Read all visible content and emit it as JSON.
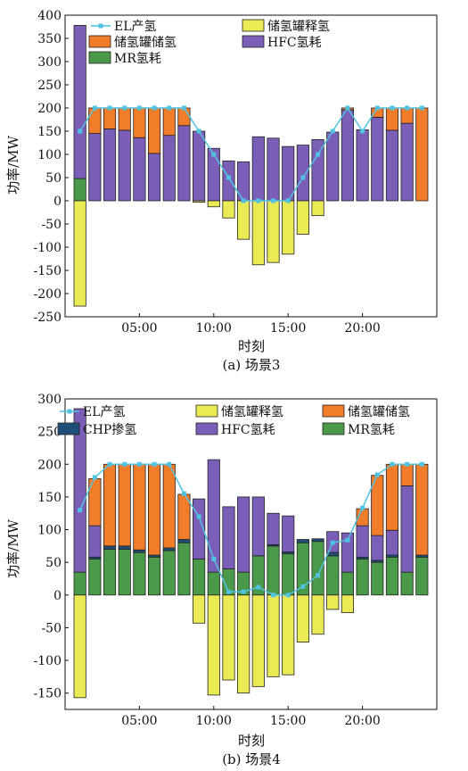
{
  "chart_data": [
    {
      "type": "bar",
      "caption": "(a) 场景3",
      "xlabel": "时刻",
      "ylabel": "功率/MW",
      "ylim": [
        -250,
        400
      ],
      "yticks": [
        -250,
        -200,
        -150,
        -100,
        -50,
        0,
        50,
        100,
        150,
        200,
        250,
        300,
        350,
        400
      ],
      "xlim": [
        0,
        25
      ],
      "xticks": [
        5,
        10,
        15,
        20
      ],
      "xtick_labels": [
        "05:00",
        "10:00",
        "15:00",
        "20:00"
      ],
      "categories": [
        1,
        2,
        3,
        4,
        5,
        6,
        7,
        8,
        9,
        10,
        11,
        12,
        13,
        14,
        15,
        16,
        17,
        18,
        19,
        20,
        21,
        22,
        23,
        24
      ],
      "legend": [
        "EL产氢",
        "储氢罐释氢",
        "储氢罐储氢",
        "HFC氢耗",
        "MR氢耗"
      ],
      "series": [
        {
          "name": "MR氢耗",
          "kind": "bar",
          "color": "#4a9a4a",
          "values": [
            48,
            0,
            0,
            0,
            0,
            0,
            0,
            0,
            0,
            0,
            0,
            0,
            0,
            0,
            0,
            0,
            0,
            0,
            0,
            0,
            0,
            0,
            0,
            0
          ]
        },
        {
          "name": "HFC氢耗",
          "kind": "bar",
          "color": "#7b5eb8",
          "values": [
            330,
            145,
            155,
            152,
            136,
            102,
            141,
            162,
            150,
            113,
            86,
            84,
            138,
            135,
            117,
            120,
            132,
            148,
            196,
            153,
            180,
            152,
            167,
            0
          ]
        },
        {
          "name": "储氢罐储氢",
          "kind": "bar",
          "color": "#f17c2a",
          "values": [
            0,
            55,
            45,
            48,
            64,
            98,
            59,
            38,
            0,
            0,
            0,
            0,
            0,
            0,
            0,
            0,
            0,
            0,
            4,
            0,
            20,
            48,
            33,
            200
          ]
        },
        {
          "name": "储氢罐释氢",
          "kind": "bar",
          "color": "#eaea55",
          "values": [
            -227,
            0,
            0,
            0,
            0,
            0,
            0,
            0,
            -3,
            -13,
            -37,
            -83,
            -138,
            -133,
            -115,
            -72,
            -32,
            0,
            0,
            0,
            0,
            0,
            0,
            0
          ]
        },
        {
          "name": "EL产氢",
          "kind": "line",
          "color": "#4fc3e0",
          "values": [
            150,
            200,
            200,
            200,
            200,
            200,
            200,
            200,
            150,
            100,
            50,
            0,
            0,
            0,
            0,
            50,
            100,
            150,
            200,
            150,
            200,
            200,
            200,
            200
          ]
        }
      ]
    },
    {
      "type": "bar",
      "caption": "(b) 场景4",
      "xlabel": "时刻",
      "ylabel": "功率/MW",
      "ylim": [
        -175,
        300
      ],
      "yticks": [
        -150,
        -100,
        -50,
        0,
        50,
        100,
        150,
        200,
        250,
        300
      ],
      "xlim": [
        0,
        25
      ],
      "xticks": [
        5,
        10,
        15,
        20
      ],
      "xtick_labels": [
        "05:00",
        "10:00",
        "15:00",
        "20:00"
      ],
      "categories": [
        1,
        2,
        3,
        4,
        5,
        6,
        7,
        8,
        9,
        10,
        11,
        12,
        13,
        14,
        15,
        16,
        17,
        18,
        19,
        20,
        21,
        22,
        23,
        24
      ],
      "legend": [
        "EL产氢",
        "储氢罐释氢",
        "储氢罐储氢",
        "CHP掺氢",
        "HFC氢耗",
        "MR氢耗"
      ],
      "series": [
        {
          "name": "MR氢耗",
          "kind": "bar",
          "color": "#4a9a4a",
          "values": [
            35,
            55,
            70,
            70,
            65,
            58,
            68,
            80,
            55,
            35,
            40,
            35,
            60,
            75,
            63,
            80,
            82,
            60,
            35,
            55,
            50,
            58,
            35,
            58
          ]
        },
        {
          "name": "CHP掺氢",
          "kind": "bar",
          "color": "#1f4e79",
          "values": [
            0,
            3,
            5,
            5,
            4,
            3,
            4,
            5,
            0,
            0,
            0,
            0,
            0,
            2,
            3,
            5,
            4,
            5,
            0,
            3,
            3,
            3,
            0,
            3
          ]
        },
        {
          "name": "HFC氢耗",
          "kind": "bar",
          "color": "#7b5eb8",
          "values": [
            250,
            48,
            0,
            0,
            0,
            0,
            0,
            0,
            92,
            172,
            95,
            115,
            90,
            48,
            55,
            0,
            0,
            32,
            60,
            48,
            38,
            38,
            132,
            0
          ]
        },
        {
          "name": "储氢罐储氢",
          "kind": "bar",
          "color": "#f17c2a",
          "values": [
            0,
            72,
            125,
            125,
            131,
            139,
            128,
            69,
            0,
            0,
            0,
            0,
            0,
            0,
            0,
            0,
            0,
            0,
            0,
            26,
            92,
            101,
            33,
            139
          ]
        },
        {
          "name": "储氢罐释氢",
          "kind": "bar",
          "color": "#eaea55",
          "values": [
            -157,
            0,
            0,
            0,
            0,
            0,
            0,
            0,
            -43,
            -153,
            -130,
            -150,
            -140,
            -125,
            -122,
            -72,
            -60,
            -22,
            -27,
            0,
            0,
            0,
            0,
            0
          ]
        },
        {
          "name": "EL产氢",
          "kind": "line",
          "color": "#4fc3e0",
          "values": [
            130,
            180,
            200,
            200,
            200,
            200,
            200,
            155,
            120,
            55,
            5,
            5,
            12,
            0,
            0,
            13,
            30,
            80,
            84,
            133,
            184,
            200,
            200,
            200
          ]
        }
      ]
    }
  ]
}
